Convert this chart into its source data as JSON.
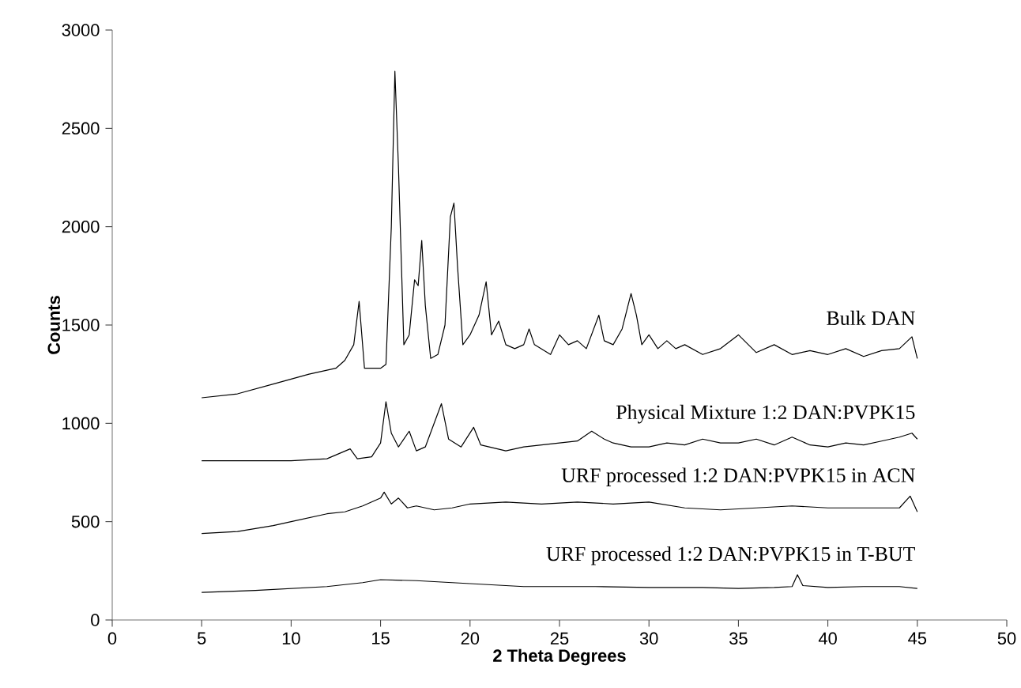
{
  "chart_data": {
    "type": "line",
    "xlabel": "2 Theta Degrees",
    "ylabel": "Counts",
    "xlim": [
      0,
      50
    ],
    "xticks": [
      0,
      5,
      10,
      15,
      20,
      25,
      30,
      35,
      40,
      45,
      50
    ],
    "ylim": [
      0,
      3000
    ],
    "yticks": [
      0,
      500,
      1000,
      1500,
      2000,
      2500,
      3000
    ],
    "series": [
      {
        "name": "Bulk DAN",
        "color": "#000000",
        "x": [
          5,
          7,
          9,
          11,
          12.5,
          13,
          13.5,
          13.8,
          14.1,
          15,
          15.3,
          15.6,
          15.8,
          16.0,
          16.3,
          16.6,
          16.9,
          17.1,
          17.3,
          17.5,
          17.8,
          18.2,
          18.6,
          18.9,
          19.1,
          19.3,
          19.6,
          20,
          20.5,
          20.9,
          21.2,
          21.6,
          22,
          22.5,
          23,
          23.3,
          23.6,
          24.5,
          25,
          25.5,
          26,
          26.5,
          27.2,
          27.5,
          28,
          28.5,
          29,
          29.3,
          29.6,
          30,
          30.5,
          31,
          31.5,
          32,
          33,
          34,
          35,
          36,
          37,
          38,
          39,
          40,
          41,
          42,
          43,
          44,
          44.7,
          45
        ],
        "values": [
          1130,
          1150,
          1200,
          1250,
          1280,
          1320,
          1400,
          1620,
          1280,
          1280,
          1300,
          2000,
          2790,
          2300,
          1400,
          1450,
          1730,
          1700,
          1930,
          1600,
          1330,
          1350,
          1500,
          2050,
          2120,
          1800,
          1400,
          1450,
          1550,
          1720,
          1450,
          1520,
          1400,
          1380,
          1400,
          1480,
          1400,
          1350,
          1450,
          1400,
          1420,
          1380,
          1550,
          1420,
          1400,
          1480,
          1660,
          1550,
          1400,
          1450,
          1380,
          1420,
          1380,
          1400,
          1350,
          1380,
          1450,
          1360,
          1400,
          1350,
          1370,
          1350,
          1380,
          1340,
          1370,
          1380,
          1440,
          1330
        ]
      },
      {
        "name": "Physical Mixture 1:2 DAN:PVPK15",
        "color": "#000000",
        "x": [
          5,
          10,
          12,
          13.3,
          13.7,
          14.5,
          15,
          15.3,
          15.6,
          16,
          16.6,
          17,
          17.5,
          18.4,
          18.8,
          19.5,
          20.2,
          20.6,
          22,
          23,
          24,
          25,
          26,
          26.8,
          27.5,
          28,
          29,
          30,
          31,
          32,
          33,
          34,
          35,
          36,
          37,
          38,
          39,
          40,
          41,
          42,
          43,
          44,
          44.7,
          45
        ],
        "values": [
          810,
          810,
          820,
          870,
          820,
          830,
          900,
          1110,
          950,
          880,
          960,
          860,
          880,
          1100,
          920,
          880,
          980,
          890,
          860,
          880,
          890,
          900,
          910,
          960,
          920,
          900,
          880,
          880,
          900,
          890,
          920,
          900,
          900,
          920,
          890,
          930,
          890,
          880,
          900,
          890,
          910,
          930,
          950,
          920
        ]
      },
      {
        "name": "URF processed 1:2 DAN:PVPK15 in ACN",
        "color": "#000000",
        "x": [
          5,
          7,
          9,
          10,
          12,
          13,
          14,
          15,
          15.2,
          15.6,
          16,
          16.5,
          17,
          18,
          19,
          20,
          22,
          24,
          26,
          28,
          30,
          32,
          34,
          36,
          38,
          40,
          42,
          44,
          44.6,
          45
        ],
        "values": [
          440,
          450,
          480,
          500,
          540,
          550,
          580,
          620,
          650,
          590,
          620,
          570,
          580,
          560,
          570,
          590,
          600,
          590,
          600,
          590,
          600,
          570,
          560,
          570,
          580,
          570,
          570,
          570,
          630,
          550
        ]
      },
      {
        "name": "URF processed 1:2 DAN:PVPK15 in T-BUT",
        "color": "#000000",
        "x": [
          5,
          8,
          10,
          12,
          13,
          14,
          15,
          17,
          19,
          21,
          23,
          25,
          27,
          30,
          33,
          35,
          37,
          38,
          38.3,
          38.6,
          40,
          42,
          44,
          45
        ],
        "values": [
          140,
          150,
          160,
          170,
          180,
          190,
          205,
          200,
          190,
          180,
          170,
          170,
          170,
          165,
          165,
          160,
          165,
          170,
          230,
          175,
          165,
          170,
          170,
          160
        ]
      }
    ]
  }
}
